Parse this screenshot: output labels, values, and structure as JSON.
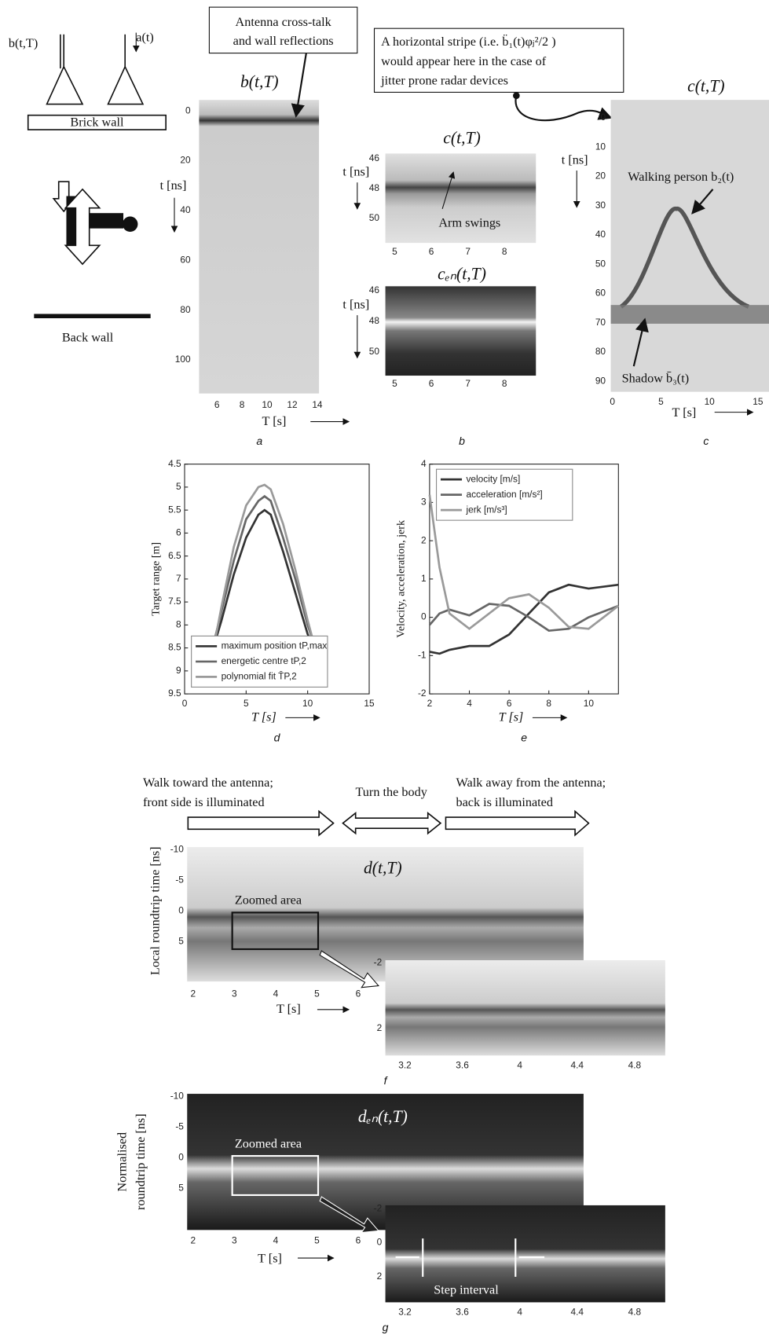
{
  "panel_a": {
    "antenna_left": "b(t,T)",
    "antenna_right": "a(t)",
    "brick_wall": "Brick wall",
    "back_wall": "Back wall",
    "title": "b(t,T)",
    "callout": [
      "Antenna cross-talk",
      "and wall reflections"
    ],
    "y_label": "t [ns]",
    "yticks": [
      "0",
      "20",
      "40",
      "60",
      "80",
      "100"
    ],
    "x_label": "T [s]",
    "xticks": [
      "6",
      "8",
      "10",
      "12",
      "14"
    ],
    "caption": "a"
  },
  "panel_b": {
    "callout": [
      "A horizontal stripe (i.e. b̈₁(t)φⱼ²/2 )",
      "would appear here in the case of",
      "jitter prone radar devices"
    ],
    "title_top": "c(t,T)",
    "title_bottom": "cₑₙ(t,T)",
    "y_label": "t [ns]",
    "yticks": [
      "46",
      "48",
      "50"
    ],
    "xticks": [
      "5",
      "6",
      "7",
      "8"
    ],
    "annotation": "Arm swings",
    "caption": "b"
  },
  "panel_c": {
    "title": "c(t,T)",
    "y_label": "t [ns]",
    "yticks": [
      "0",
      "10",
      "20",
      "30",
      "40",
      "50",
      "60",
      "70",
      "80",
      "90"
    ],
    "xticks": [
      "0",
      "5",
      "10",
      "15"
    ],
    "x_label": "T [s]",
    "walking": "Walking person b₂(t)",
    "shadow": "Shadow b̄₃(t)",
    "caption": "c"
  },
  "chart_data": [
    {
      "type": "line",
      "caption": "d",
      "xlabel": "T  [s]",
      "ylabel": "Target range [m]",
      "xlim": [
        0,
        15
      ],
      "xticks": [
        0,
        5,
        10,
        15
      ],
      "ylim": [
        4.5,
        9.5
      ],
      "y_inverted": true,
      "yticks": [
        4.5,
        5,
        5.5,
        6,
        6.5,
        7,
        7.5,
        8,
        8.5,
        9,
        9.5
      ],
      "legend": "lower left",
      "x": [
        2,
        3,
        4,
        5,
        6,
        6.5,
        7,
        8,
        9,
        10,
        11
      ],
      "series": [
        {
          "name": "maximum position  tP,max",
          "color": "#333333",
          "values": [
            8.8,
            7.9,
            6.9,
            6.1,
            5.6,
            5.5,
            5.6,
            6.4,
            7.3,
            8.2,
            8.8
          ]
        },
        {
          "name": "energetic centre  tP,2",
          "color": "#666666",
          "values": [
            8.8,
            7.7,
            6.6,
            5.7,
            5.3,
            5.2,
            5.3,
            6.1,
            7.0,
            8.0,
            8.8
          ]
        },
        {
          "name": "polynomial fit  T̄P,2",
          "color": "#9a9a9a",
          "values": [
            9.0,
            7.6,
            6.3,
            5.4,
            5.0,
            4.95,
            5.05,
            5.8,
            6.8,
            7.9,
            8.9
          ]
        }
      ]
    },
    {
      "type": "line",
      "caption": "e",
      "xlabel": "T  [s]",
      "ylabel": "Velocity, acceleration, jerk",
      "xlim": [
        2,
        11.5
      ],
      "xticks": [
        2,
        4,
        6,
        8,
        10
      ],
      "ylim": [
        -2,
        4
      ],
      "yticks": [
        -2,
        -1,
        0,
        1,
        2,
        3,
        4
      ],
      "legend": "upper left",
      "x": [
        2,
        2.5,
        3,
        4,
        5,
        6,
        7,
        8,
        9,
        10,
        11.5
      ],
      "series": [
        {
          "name": "velocity [m/s]",
          "color": "#333333",
          "values": [
            -0.9,
            -0.95,
            -0.85,
            -0.75,
            -0.75,
            -0.45,
            0.1,
            0.65,
            0.85,
            0.75,
            0.85
          ]
        },
        {
          "name": "acceleration [m/s²]",
          "color": "#666666",
          "values": [
            -0.2,
            0.1,
            0.2,
            0.05,
            0.35,
            0.3,
            0.0,
            -0.35,
            -0.3,
            0.0,
            0.3
          ]
        },
        {
          "name": "jerk [m/s³]",
          "color": "#9a9a9a",
          "values": [
            3.2,
            1.3,
            0.1,
            -0.3,
            0.1,
            0.5,
            0.6,
            0.25,
            -0.25,
            -0.3,
            0.3
          ]
        }
      ]
    }
  ],
  "panel_f": {
    "phases": [
      [
        "Walk toward the antenna;",
        "front side is illuminated"
      ],
      [
        "Turn the body"
      ],
      [
        "Walk away from the antenna;",
        "back is illuminated"
      ]
    ],
    "title": "d(t,T)",
    "zoom_label": "Zoomed area",
    "y_label": "Local roundtrip time [ns]",
    "yticks": [
      "-10",
      "-5",
      "0",
      "5"
    ],
    "xticks": [
      "2",
      "3",
      "4",
      "5",
      "6"
    ],
    "x_label": "T [s]",
    "zoom_yticks": [
      "-2",
      "2"
    ],
    "zoom_xticks": [
      "3.2",
      "3.6",
      "4",
      "4.4",
      "4.8"
    ],
    "caption": "f"
  },
  "panel_g": {
    "title": "dₑₙ(t,T)",
    "zoom_label": "Zoomed area",
    "y_label": [
      "Normalised",
      "roundtrip time [ns]"
    ],
    "yticks": [
      "-10",
      "-5",
      "0",
      "5"
    ],
    "xticks": [
      "2",
      "3",
      "4",
      "5",
      "6"
    ],
    "x_label": "T [s]",
    "zoom_yticks": [
      "-2",
      "0",
      "2"
    ],
    "zoom_xticks": [
      "3.2",
      "3.6",
      "4",
      "4.4",
      "4.8"
    ],
    "step": "Step interval",
    "caption": "g"
  }
}
